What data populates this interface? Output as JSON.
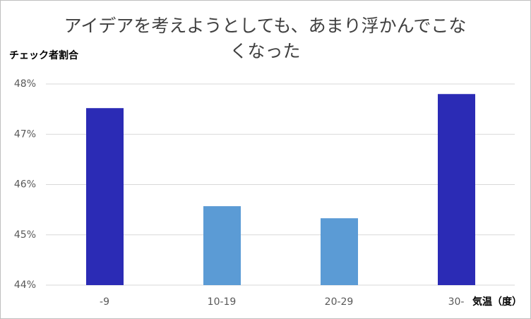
{
  "chart_data": {
    "type": "bar",
    "title": "アイデアを考えようとしても、あまり浮かんでこなくなった",
    "y_label": "チェック者割合",
    "x_label": "気温（度）",
    "categories": [
      "-9",
      "10-19",
      "20-29",
      "30-"
    ],
    "values": [
      47.52,
      45.57,
      45.33,
      47.8
    ],
    "colors": [
      "#2b2bb5",
      "#5b9bd5",
      "#5b9bd5",
      "#2b2bb5"
    ],
    "ylim": [
      44,
      48
    ],
    "yticks": [
      {
        "value": 44,
        "label": "44%"
      },
      {
        "value": 45,
        "label": "45%"
      },
      {
        "value": 46,
        "label": "46%"
      },
      {
        "value": 47,
        "label": "47%"
      },
      {
        "value": 48,
        "label": "48%"
      }
    ],
    "grid": true
  }
}
